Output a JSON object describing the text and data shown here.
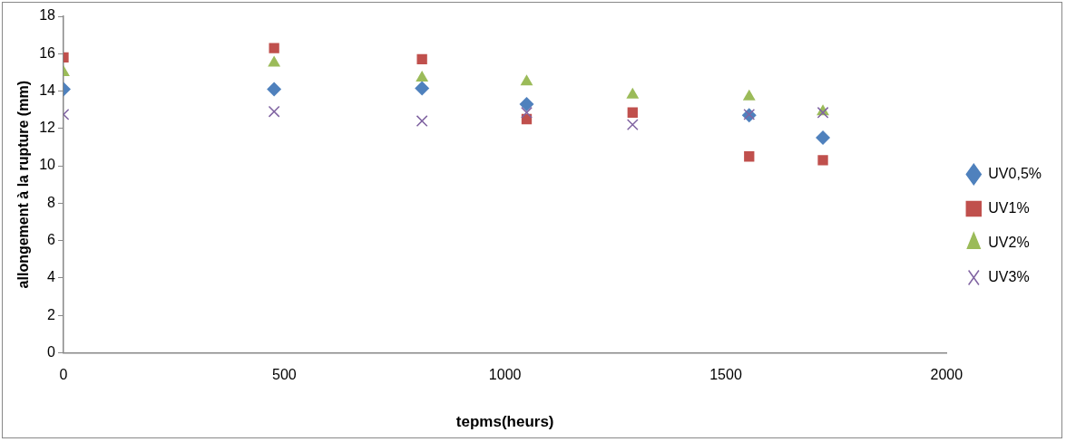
{
  "chart_data": {
    "type": "scatter",
    "xlabel": "tepms(heurs)",
    "ylabel": "allongement à la rupture (mm)",
    "x": [
      0,
      477,
      812,
      1049,
      1289,
      1553,
      1720
    ],
    "xlim": [
      0,
      2000
    ],
    "xticks": [
      0,
      500,
      1000,
      1500,
      2000
    ],
    "ylim": [
      0,
      18
    ],
    "yticks": [
      0,
      2,
      4,
      6,
      8,
      10,
      12,
      14,
      16,
      18
    ],
    "grid": false,
    "legend": "right",
    "series": [
      {
        "name": "UV0,5%",
        "color": "#4f81bd",
        "marker": "diamond",
        "values": [
          14.1,
          14.1,
          14.15,
          13.3,
          null,
          12.7,
          11.5
        ]
      },
      {
        "name": "UV1%",
        "color": "#c0504d",
        "marker": "square",
        "values": [
          15.8,
          16.3,
          15.7,
          12.5,
          12.85,
          10.5,
          10.3
        ]
      },
      {
        "name": "UV2%",
        "color": "#9bbb59",
        "marker": "triangle",
        "values": [
          15.0,
          15.5,
          14.7,
          14.5,
          13.8,
          13.7,
          12.9
        ]
      },
      {
        "name": "UV3%",
        "color": "#8064a2",
        "marker": "cross",
        "values": [
          12.75,
          12.9,
          12.4,
          12.85,
          12.2,
          12.75,
          12.85
        ]
      }
    ]
  }
}
